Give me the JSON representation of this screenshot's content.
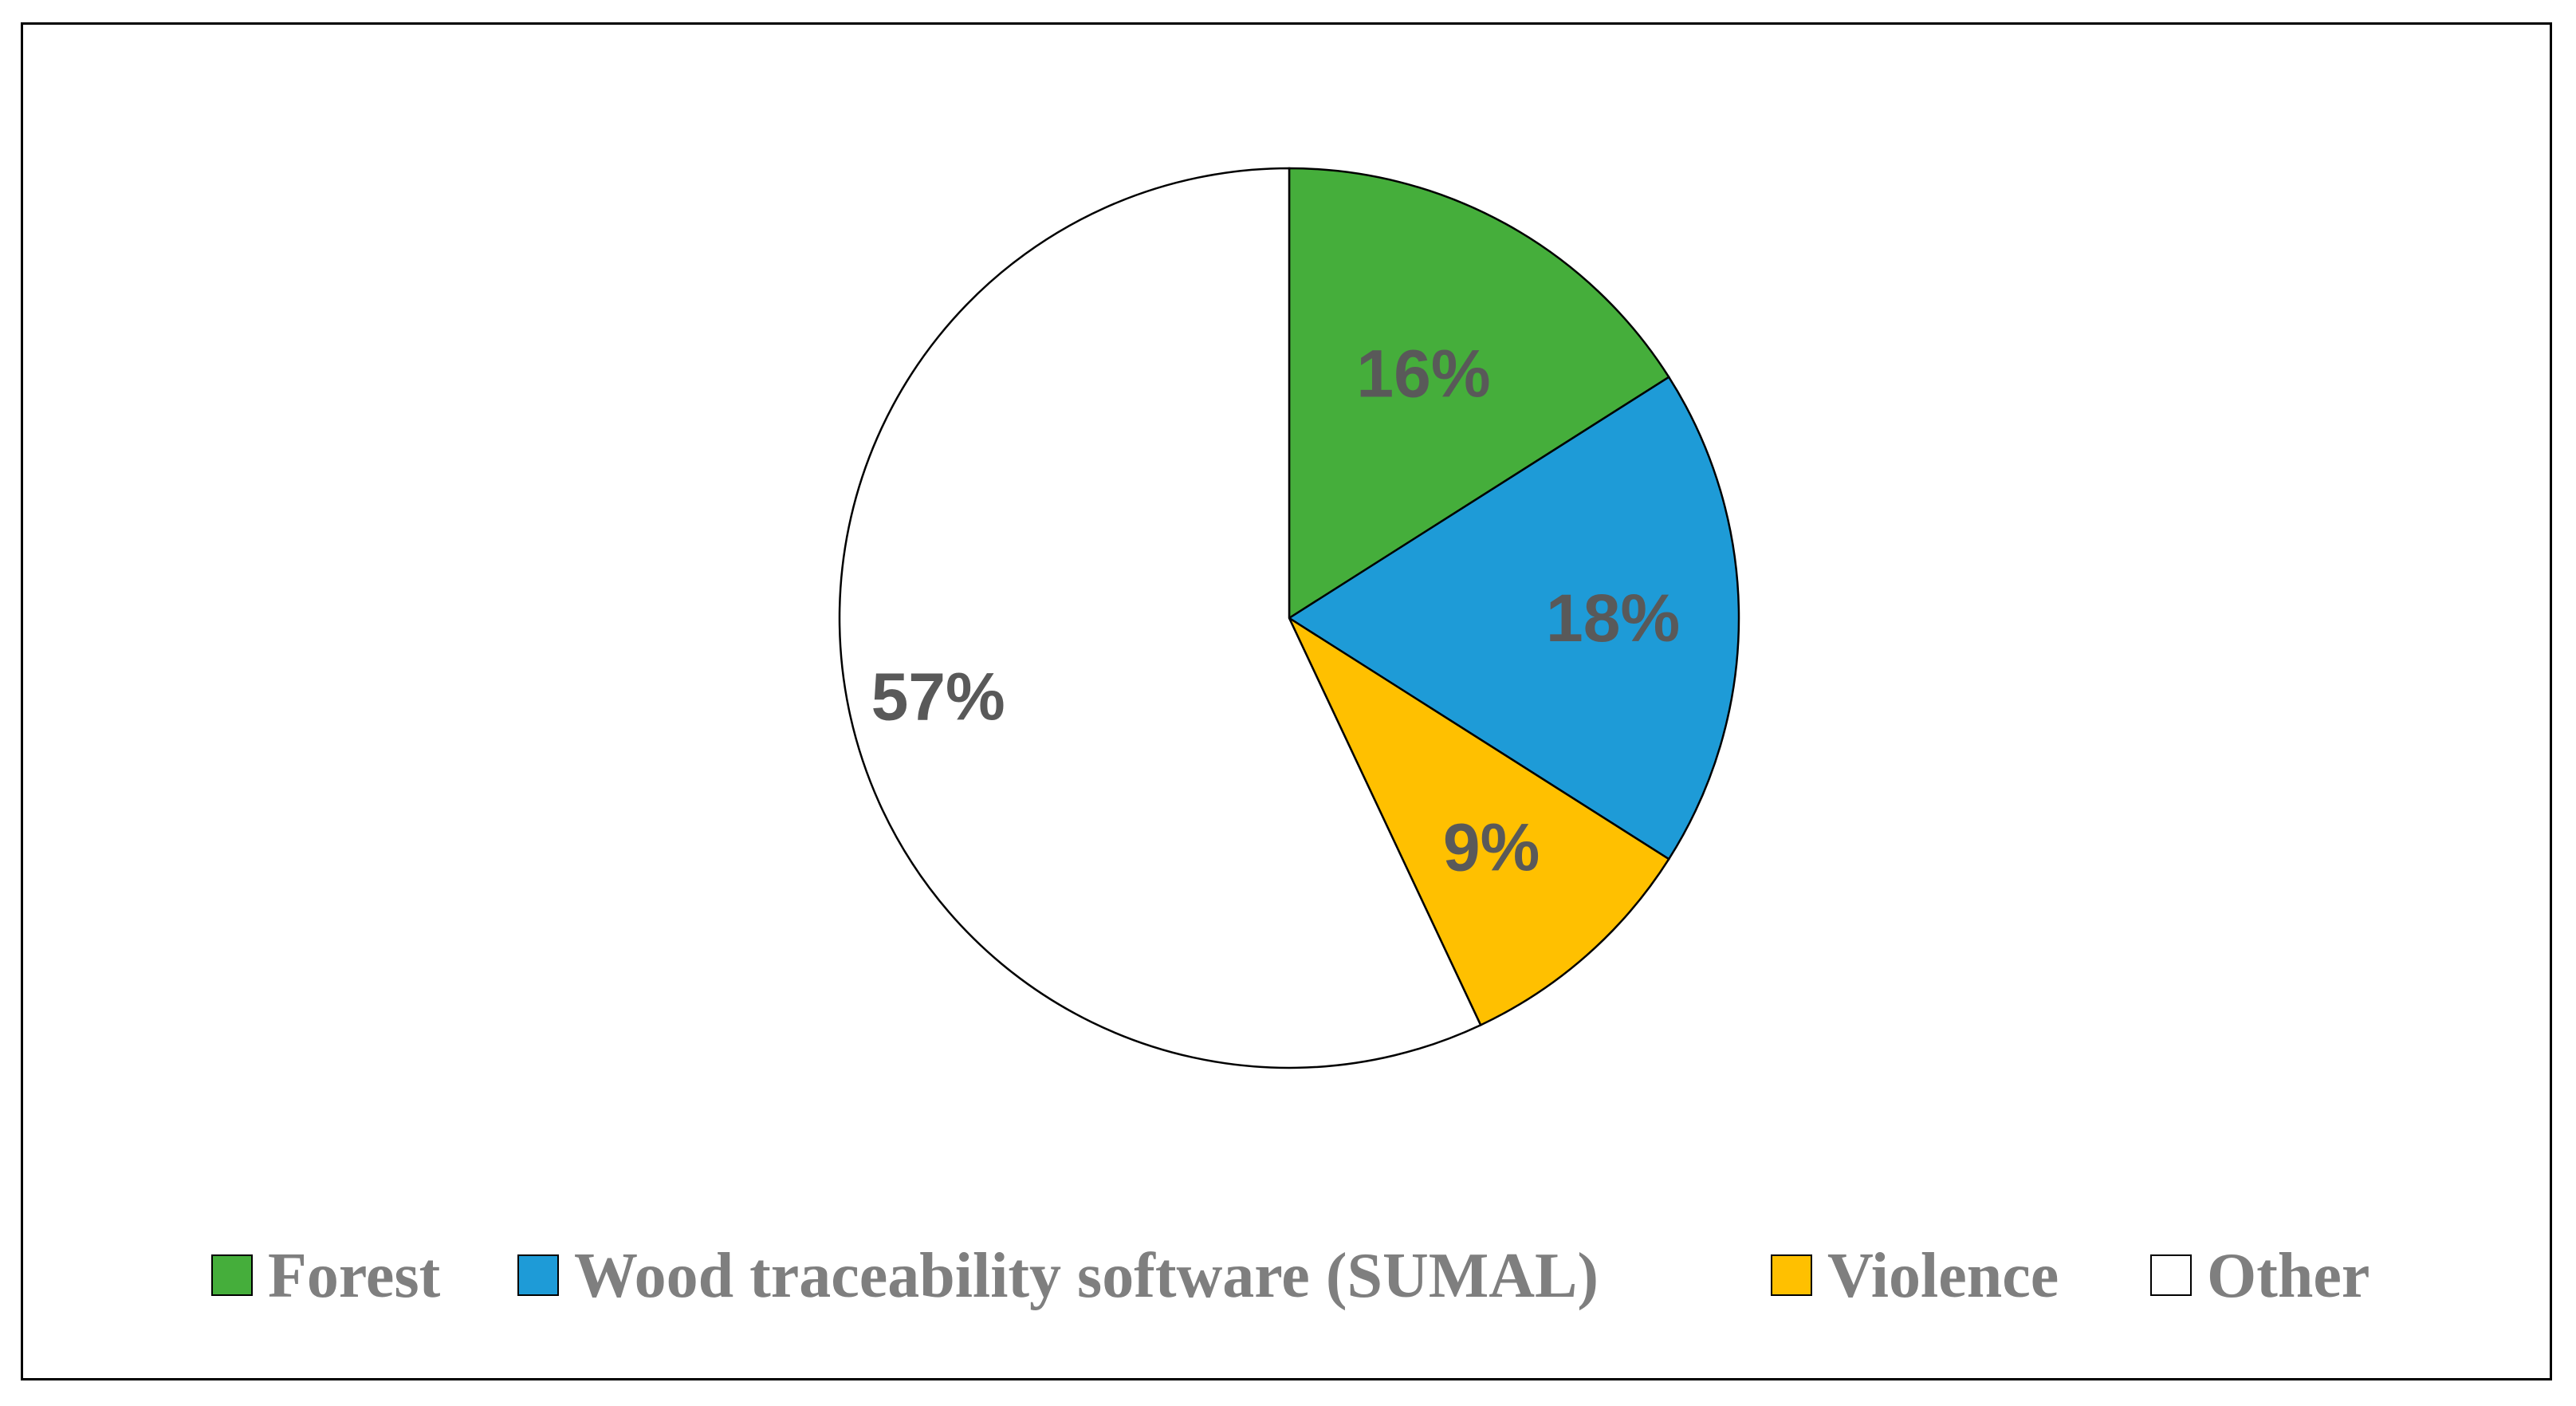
{
  "chart_data": {
    "type": "pie",
    "title": "",
    "categories": [
      "Forest",
      "Wood traceability software (SUMAL)",
      "Violence",
      "Other"
    ],
    "values": [
      16,
      18,
      9,
      57
    ],
    "labels": [
      "16%",
      "18%",
      "9%",
      "57%"
    ],
    "colors": [
      "#45AE3B",
      "#1E9BD7",
      "#FFC000",
      "#FFFFFF"
    ],
    "legend_position": "bottom"
  }
}
